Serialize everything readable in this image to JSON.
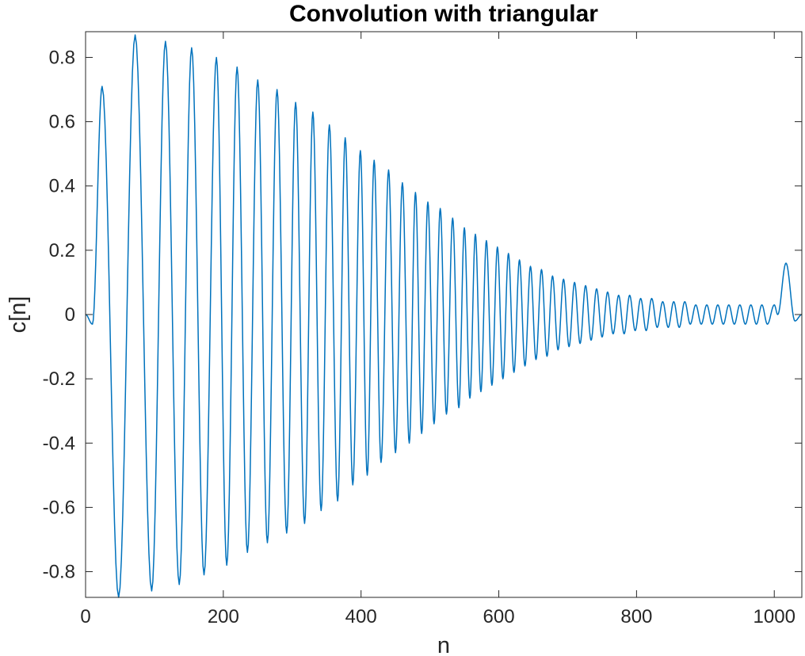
{
  "chart_data": {
    "type": "line",
    "title": "Convolution with triangular",
    "xlabel": "n",
    "ylabel": "c[n]",
    "xlim": [
      0,
      1040
    ],
    "ylim": [
      -0.88,
      0.88
    ],
    "xticks": [
      0,
      200,
      400,
      600,
      800,
      1000
    ],
    "yticks": [
      -0.8,
      -0.6,
      -0.4,
      -0.2,
      0,
      0.2,
      0.4,
      0.6,
      0.8
    ],
    "ytick_labels": [
      "-0.8",
      "-0.6",
      "-0.4",
      "-0.2",
      "0",
      "0.2",
      "0.4",
      "0.6",
      "0.8"
    ],
    "xtick_labels": [
      "0",
      "200",
      "400",
      "600",
      "800",
      "1000"
    ],
    "grid": false,
    "box": true,
    "series": [
      {
        "color": "#0072BD",
        "description_of_shape": "chirp-like oscillation with decaying amplitude and increasing frequency",
        "x": [
          0,
          10,
          24,
          48,
          72,
          96,
          116,
          136,
          154,
          172,
          190,
          205,
          220,
          235,
          250,
          264,
          278,
          292,
          305,
          318,
          330,
          342,
          354,
          366,
          377,
          388,
          399,
          409,
          419,
          429,
          440,
          450,
          460,
          470,
          479,
          488,
          497,
          506,
          515,
          524,
          533,
          542,
          550,
          558,
          566,
          574,
          582,
          590,
          598,
          606,
          614,
          622,
          630,
          638,
          646,
          654,
          662,
          670,
          678,
          686,
          694,
          702,
          710,
          718,
          726,
          734,
          742,
          750,
          758,
          766,
          774,
          782,
          790,
          798,
          806,
          814,
          822,
          830,
          838,
          846,
          854,
          862,
          870,
          878,
          886,
          894,
          902,
          910,
          918,
          926,
          934,
          942,
          950,
          958,
          966,
          974,
          982,
          990,
          1000,
          1005,
          1017,
          1030,
          1040
        ],
        "y": [
          0,
          -0.03,
          0.71,
          -0.88,
          0.87,
          -0.86,
          0.85,
          -0.84,
          0.83,
          -0.81,
          0.8,
          -0.78,
          0.77,
          -0.74,
          0.73,
          -0.71,
          0.7,
          -0.68,
          0.66,
          -0.65,
          0.63,
          -0.61,
          0.59,
          -0.58,
          0.55,
          -0.53,
          0.51,
          -0.5,
          0.48,
          -0.46,
          0.45,
          -0.43,
          0.41,
          -0.4,
          0.38,
          -0.37,
          0.35,
          -0.34,
          0.33,
          -0.31,
          0.3,
          -0.29,
          0.27,
          -0.26,
          0.25,
          -0.24,
          0.23,
          -0.22,
          0.21,
          -0.2,
          0.19,
          -0.18,
          0.17,
          -0.16,
          0.15,
          -0.14,
          0.14,
          -0.13,
          0.12,
          -0.11,
          0.11,
          -0.1,
          0.1,
          -0.09,
          0.09,
          -0.08,
          0.08,
          -0.07,
          0.07,
          -0.06,
          0.06,
          -0.06,
          0.06,
          -0.05,
          0.05,
          -0.05,
          0.05,
          -0.04,
          0.04,
          -0.04,
          0.04,
          -0.04,
          0.04,
          -0.03,
          0.03,
          -0.03,
          0.03,
          -0.03,
          0.03,
          -0.03,
          0.03,
          -0.03,
          0.03,
          -0.03,
          0.03,
          -0.03,
          0.03,
          -0.03,
          0.03,
          0.0,
          0.16,
          -0.02,
          0
        ]
      }
    ]
  }
}
